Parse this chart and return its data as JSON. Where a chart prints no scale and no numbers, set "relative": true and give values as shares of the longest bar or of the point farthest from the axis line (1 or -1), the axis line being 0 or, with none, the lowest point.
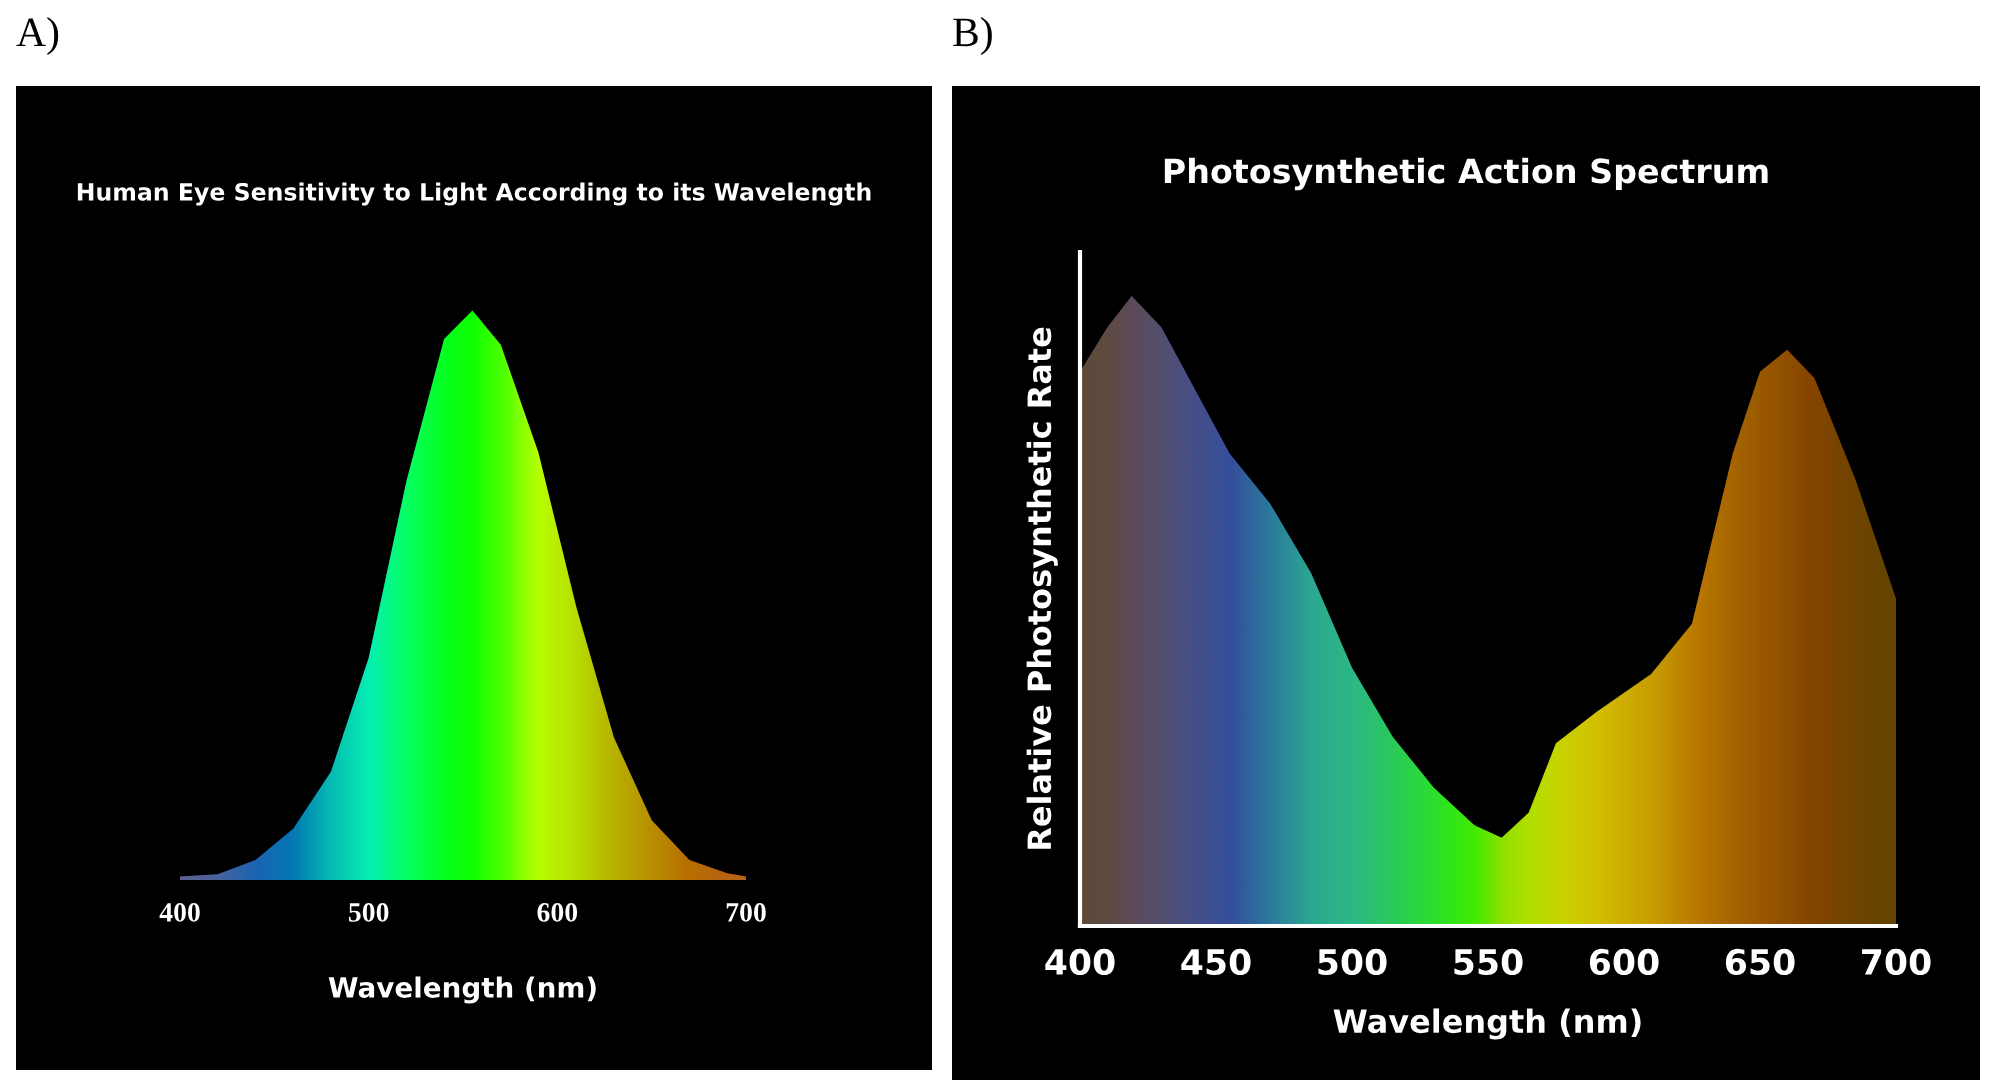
{
  "chart_data": [
    {
      "type": "area",
      "title": "Human Eye Sensitivity to Light According to its Wavelength",
      "xlabel": "Wavelength (nm)",
      "annotations": [
        "A)"
      ],
      "relative": true,
      "legend": false,
      "grid": false,
      "xlim": [
        400,
        700
      ],
      "xticks": [
        400,
        500,
        600,
        700
      ],
      "series": [
        {
          "x": [
            400,
            420,
            440,
            460,
            480,
            500,
            520,
            540,
            555,
            570,
            590,
            610,
            630,
            650,
            670,
            690,
            700
          ],
          "values": [
            0.006,
            0.01,
            0.035,
            0.09,
            0.19,
            0.39,
            0.7,
            0.95,
            1,
            0.94,
            0.75,
            0.48,
            0.25,
            0.105,
            0.035,
            0.012,
            0.006
          ],
          "colors": [
            "#7a1fd0",
            "#6020e0",
            "#2020ff",
            "#0040ff",
            "#00a0ff",
            "#00e8ff",
            "#00ff90",
            "#00ff30",
            "#10ff00",
            "#60ff00",
            "#ffff00",
            "#ffd000",
            "#ff9000",
            "#ff6000",
            "#ff3000",
            "#ff2020",
            "#ff2020"
          ]
        }
      ]
    },
    {
      "type": "area",
      "title": "Photosynthetic Action Spectrum",
      "xlabel": "Wavelength (nm)",
      "ylabel": "Relative Photosynthetic Rate",
      "annotations": [
        "B)"
      ],
      "relative": true,
      "legend": false,
      "grid": false,
      "xlim": [
        400,
        700
      ],
      "xticks": [
        400,
        450,
        500,
        550,
        600,
        650,
        700
      ],
      "series": [
        {
          "x": [
            400,
            410,
            419,
            430,
            440,
            455,
            470,
            485,
            500,
            515,
            530,
            545,
            555,
            565,
            575,
            590,
            610,
            625,
            640,
            650,
            660,
            670,
            685,
            700
          ],
          "values": [
            0.88,
            0.95,
            1,
            0.95,
            0.87,
            0.75,
            0.67,
            0.56,
            0.41,
            0.3,
            0.22,
            0.16,
            0.14,
            0.18,
            0.29,
            0.34,
            0.4,
            0.48,
            0.75,
            0.88,
            0.915,
            0.87,
            0.71,
            0.52
          ],
          "colors": [
            "#4a0a50",
            "#4a0a60",
            "#4a0a80",
            "#3a10a0",
            "#2a10c0",
            "#1010e0",
            "#0050e0",
            "#0090d0",
            "#00a8c0",
            "#00c080",
            "#00e040",
            "#20f000",
            "#90e000",
            "#c0e000",
            "#e0d000",
            "#f0b000",
            "#e08000",
            "#d05000",
            "#b03000",
            "#a02000",
            "#901000",
            "#800000",
            "#600000",
            "#500000"
          ]
        }
      ]
    }
  ]
}
